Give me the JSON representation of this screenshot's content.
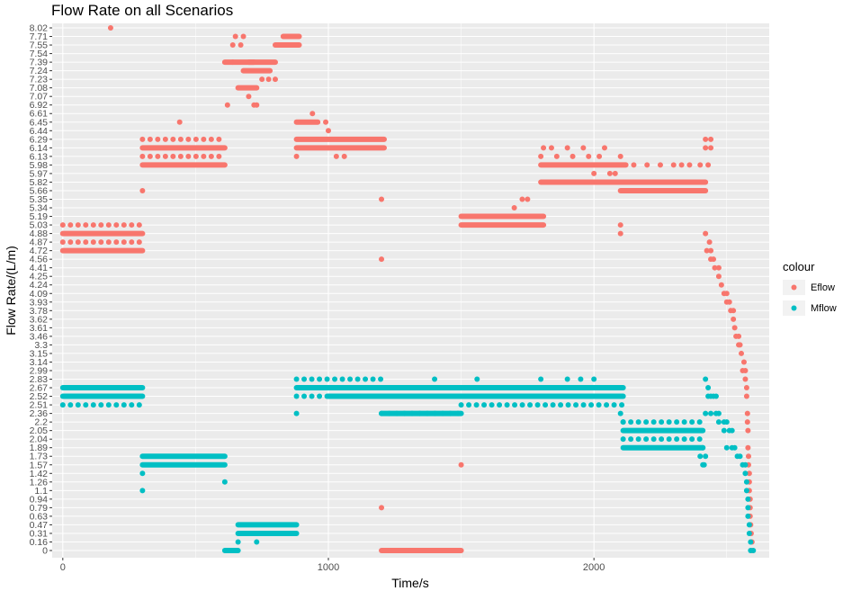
{
  "chart_data": {
    "type": "scatter",
    "title": "Flow Rate on all Scenarios",
    "xlabel": "Time/s",
    "ylabel": "Flow Rate/(L/m)",
    "xlim": [
      -40,
      2660
    ],
    "x_ticks": [
      0,
      1000,
      2000
    ],
    "y_ticks": [
      "0",
      "0.16",
      "0.31",
      "0.47",
      "0.63",
      "0.79",
      "0.94",
      "1.1",
      "1.26",
      "1.42",
      "1.57",
      "1.73",
      "1.89",
      "2.04",
      "2.05",
      "2.2",
      "2.36",
      "2.51",
      "2.52",
      "2.67",
      "2.83",
      "2.99",
      "3.14",
      "3.15",
      "3.3",
      "3.46",
      "3.61",
      "3.62",
      "3.78",
      "3.93",
      "4.09",
      "4.24",
      "4.25",
      "4.41",
      "4.56",
      "4.72",
      "4.87",
      "4.88",
      "5.03",
      "5.19",
      "5.34",
      "5.35",
      "5.66",
      "5.82",
      "5.97",
      "5.98",
      "6.13",
      "6.14",
      "6.29",
      "6.44",
      "6.45",
      "6.61",
      "6.92",
      "7.07",
      "7.08",
      "7.23",
      "7.24",
      "7.39",
      "7.54",
      "7.55",
      "7.71",
      "8.02"
    ],
    "grid": true,
    "legend": {
      "title": "colour",
      "position": "right",
      "entries": [
        "Eflow",
        "Mflow"
      ]
    },
    "colors": {
      "Eflow": "#F8766D",
      "Mflow": "#00BFC4"
    },
    "series": [
      {
        "name": "Eflow",
        "segments": [
          [
            0,
            300,
            "4.88"
          ],
          [
            0,
            300,
            "4.72"
          ],
          [
            300,
            610,
            "6.14"
          ],
          [
            300,
            610,
            "5.98"
          ],
          [
            610,
            640,
            "7.39"
          ],
          [
            640,
            720,
            "7.39"
          ],
          [
            680,
            780,
            "7.24"
          ],
          [
            700,
            800,
            "7.39"
          ],
          [
            660,
            730,
            "7.08"
          ],
          [
            800,
            890,
            "7.55"
          ],
          [
            830,
            890,
            "7.71"
          ],
          [
            880,
            1210,
            "6.29"
          ],
          [
            880,
            1210,
            "6.14"
          ],
          [
            880,
            960,
            "6.45"
          ],
          [
            1200,
            1500,
            "0"
          ],
          [
            1500,
            1810,
            "5.19"
          ],
          [
            1500,
            1810,
            "5.03"
          ],
          [
            1800,
            2420,
            "5.82"
          ],
          [
            1800,
            2120,
            "5.98"
          ],
          [
            2100,
            2420,
            "5.66"
          ]
        ],
        "dotted": [
          [
            0,
            300,
            "5.03"
          ],
          [
            0,
            300,
            "4.87"
          ],
          [
            300,
            610,
            "6.29"
          ],
          [
            300,
            610,
            "6.13"
          ]
        ],
        "points": [
          [
            180,
            "8.02"
          ],
          [
            300,
            "5.66"
          ],
          [
            440,
            "6.45"
          ],
          [
            620,
            "6.92"
          ],
          [
            640,
            "7.55"
          ],
          [
            650,
            "7.71"
          ],
          [
            670,
            "7.55"
          ],
          [
            680,
            "7.71"
          ],
          [
            700,
            "7.07"
          ],
          [
            720,
            "6.92"
          ],
          [
            730,
            "6.92"
          ],
          [
            750,
            "7.23"
          ],
          [
            775,
            "7.23"
          ],
          [
            800,
            "7.23"
          ],
          [
            880,
            "6.13"
          ],
          [
            940,
            "6.61"
          ],
          [
            990,
            "6.45"
          ],
          [
            1000,
            "6.44"
          ],
          [
            1030,
            "6.13"
          ],
          [
            1060,
            "6.13"
          ],
          [
            1200,
            "5.35"
          ],
          [
            1200,
            "4.56"
          ],
          [
            1200,
            "0.79"
          ],
          [
            1500,
            "1.57"
          ],
          [
            1700,
            "5.34"
          ],
          [
            1730,
            "5.35"
          ],
          [
            1750,
            "5.35"
          ],
          [
            1800,
            "6.13"
          ],
          [
            1810,
            "6.14"
          ],
          [
            1840,
            "6.14"
          ],
          [
            1860,
            "6.13"
          ],
          [
            1900,
            "6.14"
          ],
          [
            1920,
            "6.13"
          ],
          [
            1960,
            "6.14"
          ],
          [
            1980,
            "6.13"
          ],
          [
            2000,
            "5.97"
          ],
          [
            2020,
            "6.13"
          ],
          [
            2040,
            "6.14"
          ],
          [
            2060,
            "5.97"
          ],
          [
            2080,
            "5.97"
          ],
          [
            2100,
            "6.13"
          ],
          [
            2100,
            "5.03"
          ],
          [
            2100,
            "4.88"
          ],
          [
            2150,
            "5.98"
          ],
          [
            2200,
            "5.98"
          ],
          [
            2250,
            "5.98"
          ],
          [
            2300,
            "5.98"
          ],
          [
            2330,
            "5.98"
          ],
          [
            2360,
            "5.98"
          ],
          [
            2400,
            "5.98"
          ],
          [
            2430,
            "5.98"
          ],
          [
            2420,
            "6.29"
          ],
          [
            2440,
            "6.29"
          ],
          [
            2420,
            "6.14"
          ],
          [
            2440,
            "6.14"
          ],
          [
            2420,
            "4.88"
          ],
          [
            2435,
            "4.87"
          ],
          [
            2425,
            "4.72"
          ],
          [
            2440,
            "4.72"
          ],
          [
            2440,
            "4.56"
          ],
          [
            2450,
            "4.56"
          ],
          [
            2455,
            "4.41"
          ],
          [
            2470,
            "4.41"
          ],
          [
            2470,
            "4.25"
          ],
          [
            2480,
            "4.24"
          ],
          [
            2490,
            "4.09"
          ],
          [
            2500,
            "4.09"
          ],
          [
            2500,
            "3.93"
          ],
          [
            2510,
            "3.93"
          ],
          [
            2515,
            "3.78"
          ],
          [
            2525,
            "3.78"
          ],
          [
            2525,
            "3.62"
          ],
          [
            2530,
            "3.61"
          ],
          [
            2535,
            "3.46"
          ],
          [
            2545,
            "3.46"
          ],
          [
            2545,
            "3.3"
          ],
          [
            2550,
            "3.3"
          ],
          [
            2555,
            "3.15"
          ],
          [
            2565,
            "3.14"
          ],
          [
            2560,
            "2.99"
          ],
          [
            2570,
            "2.99"
          ],
          [
            2570,
            "2.83"
          ],
          [
            2575,
            "2.67"
          ],
          [
            2575,
            "2.52"
          ],
          [
            2578,
            "2.36"
          ],
          [
            2578,
            "2.2"
          ],
          [
            2580,
            "2.05"
          ],
          [
            2580,
            "1.89"
          ],
          [
            2582,
            "1.73"
          ],
          [
            2582,
            "1.57"
          ],
          [
            2585,
            "1.42"
          ],
          [
            2585,
            "1.26"
          ],
          [
            2585,
            "1.1"
          ],
          [
            2588,
            "0.94"
          ],
          [
            2588,
            "0.79"
          ],
          [
            2588,
            "0.63"
          ],
          [
            2590,
            "0.47"
          ],
          [
            2592,
            "0.31"
          ],
          [
            2595,
            "0.16"
          ],
          [
            2595,
            "0"
          ]
        ]
      },
      {
        "name": "Mflow",
        "segments": [
          [
            0,
            300,
            "2.67"
          ],
          [
            0,
            300,
            "2.52"
          ],
          [
            300,
            610,
            "1.73"
          ],
          [
            300,
            610,
            "1.57"
          ],
          [
            610,
            660,
            "0"
          ],
          [
            660,
            880,
            "0.47"
          ],
          [
            660,
            880,
            "0.31"
          ],
          [
            880,
            1200,
            "2.67"
          ],
          [
            1000,
            1200,
            "2.52"
          ],
          [
            1200,
            1500,
            "2.52"
          ],
          [
            1200,
            1500,
            "2.36"
          ],
          [
            1200,
            2110,
            "2.67"
          ],
          [
            1500,
            2110,
            "2.52"
          ],
          [
            2110,
            2410,
            "2.05"
          ],
          [
            2110,
            2410,
            "1.89"
          ]
        ],
        "dotted": [
          [
            0,
            300,
            "2.51"
          ],
          [
            880,
            1200,
            "2.83"
          ],
          [
            880,
            1000,
            "2.52"
          ],
          [
            1200,
            1500,
            "2.36"
          ],
          [
            1500,
            2110,
            "2.51"
          ],
          [
            2110,
            2410,
            "2.2"
          ],
          [
            2110,
            2410,
            "2.04"
          ]
        ],
        "points": [
          [
            880,
            "2.36"
          ],
          [
            300,
            "1.42"
          ],
          [
            300,
            "1.1"
          ],
          [
            610,
            "1.26"
          ],
          [
            660,
            "0.16"
          ],
          [
            730,
            "0.16"
          ],
          [
            1400,
            "2.83"
          ],
          [
            1560,
            "2.83"
          ],
          [
            1800,
            "2.83"
          ],
          [
            1900,
            "2.83"
          ],
          [
            1950,
            "2.83"
          ],
          [
            2000,
            "2.83"
          ],
          [
            2100,
            "2.36"
          ],
          [
            2110,
            "2.2"
          ],
          [
            2400,
            "1.73"
          ],
          [
            2410,
            "1.57"
          ],
          [
            2420,
            "1.73"
          ],
          [
            2415,
            "1.57"
          ],
          [
            2410,
            "1.89"
          ],
          [
            2420,
            "2.83"
          ],
          [
            2430,
            "2.67"
          ],
          [
            2420,
            "2.36"
          ],
          [
            2430,
            "2.52"
          ],
          [
            2440,
            "2.52"
          ],
          [
            2450,
            "2.52"
          ],
          [
            2460,
            "2.52"
          ],
          [
            2440,
            "2.36"
          ],
          [
            2460,
            "2.36"
          ],
          [
            2470,
            "2.36"
          ],
          [
            2470,
            "2.2"
          ],
          [
            2490,
            "2.2"
          ],
          [
            2500,
            "2.2"
          ],
          [
            2490,
            "2.05"
          ],
          [
            2510,
            "2.05"
          ],
          [
            2520,
            "2.05"
          ],
          [
            2500,
            "1.89"
          ],
          [
            2520,
            "1.89"
          ],
          [
            2530,
            "1.89"
          ],
          [
            2540,
            "1.73"
          ],
          [
            2550,
            "1.73"
          ],
          [
            2560,
            "1.57"
          ],
          [
            2570,
            "1.57"
          ],
          [
            2570,
            "1.42"
          ],
          [
            2575,
            "1.26"
          ],
          [
            2575,
            "1.1"
          ],
          [
            2580,
            "0.94"
          ],
          [
            2580,
            "0.79"
          ],
          [
            2580,
            "0.63"
          ],
          [
            2585,
            "0.47"
          ],
          [
            2585,
            "0.31"
          ],
          [
            2590,
            "0.16"
          ],
          [
            2590,
            "0"
          ],
          [
            2600,
            "0"
          ]
        ]
      }
    ]
  }
}
